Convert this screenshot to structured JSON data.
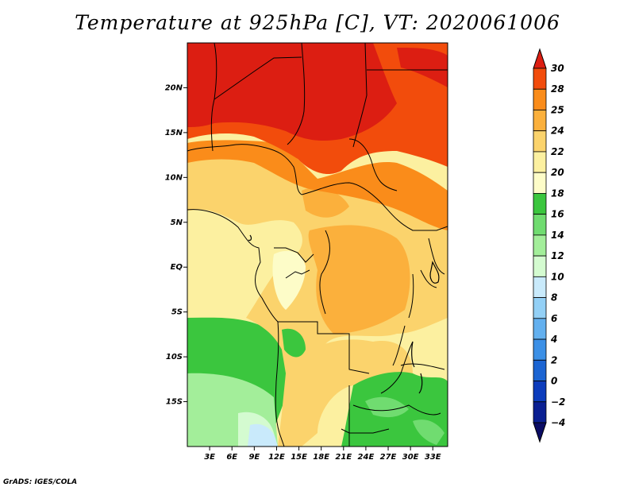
{
  "title": "Temperature at 925hPa [C], VT: 2020061006",
  "credit": "GrADS: IGES/COLA",
  "map": {
    "lat_range": [
      -20,
      25
    ],
    "lon_range": [
      0,
      35
    ],
    "lat_ticks": [
      {
        "value": 20,
        "label": "20N"
      },
      {
        "value": 15,
        "label": "15N"
      },
      {
        "value": 10,
        "label": "10N"
      },
      {
        "value": 5,
        "label": "5N"
      },
      {
        "value": 0,
        "label": "EQ"
      },
      {
        "value": -5,
        "label": "5S"
      },
      {
        "value": -10,
        "label": "10S"
      },
      {
        "value": -15,
        "label": "15S"
      }
    ],
    "lon_ticks": [
      {
        "value": 3,
        "label": "3E"
      },
      {
        "value": 6,
        "label": "6E"
      },
      {
        "value": 9,
        "label": "9E"
      },
      {
        "value": 12,
        "label": "12E"
      },
      {
        "value": 15,
        "label": "15E"
      },
      {
        "value": 18,
        "label": "18E"
      },
      {
        "value": 21,
        "label": "21E"
      },
      {
        "value": 24,
        "label": "24E"
      },
      {
        "value": 27,
        "label": "27E"
      },
      {
        "value": 30,
        "label": "30E"
      },
      {
        "value": 33,
        "label": "33E"
      }
    ]
  },
  "colorbar": {
    "levels": [
      "30",
      "28",
      "25",
      "24",
      "22",
      "20",
      "18",
      "16",
      "14",
      "12",
      "10",
      "8",
      "6",
      "4",
      "2",
      "0",
      "−2",
      "−4"
    ],
    "colors_top_to_bottom": [
      "#dc1e12",
      "#f24c0c",
      "#fa8c1a",
      "#fbb03c",
      "#fbd36c",
      "#fcf0a0",
      "#fdfcc8",
      "#3bc63e",
      "#70dc70",
      "#a3ee9a",
      "#d4fbd0",
      "#c9eafb",
      "#93d0f6",
      "#63b0ef",
      "#3c90e6",
      "#1b64d2",
      "#0c3cbc",
      "#0a1f92",
      "#0a0c64"
    ]
  }
}
